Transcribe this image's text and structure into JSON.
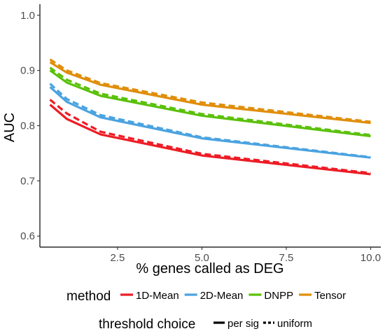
{
  "chart_data": {
    "type": "line",
    "xlabel": "% genes called as DEG",
    "ylabel": "AUC",
    "xlim": [
      0.2,
      10.3
    ],
    "ylim": [
      0.58,
      1.02
    ],
    "xticks": [
      2.5,
      5.0,
      7.5,
      10.0
    ],
    "xtick_labels": [
      "2.5",
      "5.0",
      "7.5",
      "10.0"
    ],
    "yticks": [
      0.6,
      0.7,
      0.8,
      0.9,
      1.0
    ],
    "ytick_labels": [
      "0.6",
      "0.7",
      "0.8",
      "0.9",
      "1.0"
    ],
    "grid": false,
    "legend_placement": "bottom",
    "x": [
      0.5,
      1.0,
      2.0,
      5.0,
      10.0
    ],
    "series": [
      {
        "name": "1D-Mean",
        "threshold": "per sig",
        "color": "#ee1c25",
        "values": [
          0.838,
          0.812,
          0.784,
          0.746,
          0.712
        ]
      },
      {
        "name": "1D-Mean",
        "threshold": "uniform",
        "color": "#ee1c25",
        "values": [
          0.847,
          0.822,
          0.789,
          0.749,
          0.714
        ]
      },
      {
        "name": "2D-Mean",
        "threshold": "per sig",
        "color": "#4aa3e0",
        "values": [
          0.87,
          0.843,
          0.815,
          0.777,
          0.742
        ]
      },
      {
        "name": "2D-Mean",
        "threshold": "uniform",
        "color": "#4aa3e0",
        "values": [
          0.876,
          0.848,
          0.819,
          0.779,
          0.743
        ]
      },
      {
        "name": "DNPP",
        "threshold": "per sig",
        "color": "#5ac10a",
        "values": [
          0.9,
          0.878,
          0.854,
          0.818,
          0.781
        ]
      },
      {
        "name": "DNPP",
        "threshold": "uniform",
        "color": "#5ac10a",
        "values": [
          0.905,
          0.883,
          0.858,
          0.821,
          0.783
        ]
      },
      {
        "name": "Tensor",
        "threshold": "per sig",
        "color": "#e08e0b",
        "values": [
          0.915,
          0.896,
          0.874,
          0.838,
          0.805
        ]
      },
      {
        "name": "Tensor",
        "threshold": "uniform",
        "color": "#e08e0b",
        "values": [
          0.92,
          0.9,
          0.877,
          0.842,
          0.807
        ]
      }
    ]
  },
  "legend": {
    "method_title": "method",
    "methods": [
      {
        "label": "1D-Mean",
        "color": "#ee1c25"
      },
      {
        "label": "2D-Mean",
        "color": "#4aa3e0"
      },
      {
        "label": "DNPP",
        "color": "#5ac10a"
      },
      {
        "label": "Tensor",
        "color": "#e08e0b"
      }
    ],
    "threshold_title": "threshold choice",
    "thresholds": [
      {
        "label": "per sig",
        "style": "solid"
      },
      {
        "label": "uniform",
        "style": "dashed"
      }
    ]
  }
}
